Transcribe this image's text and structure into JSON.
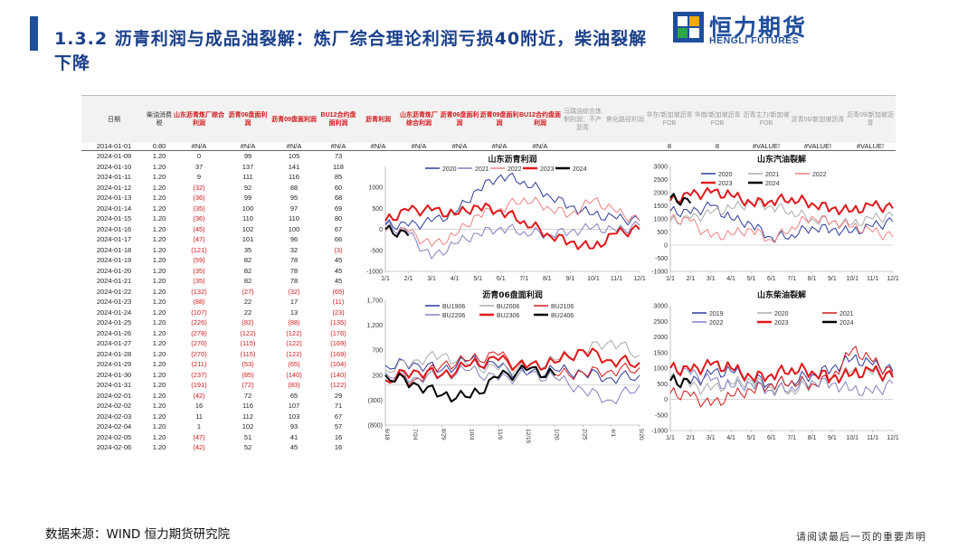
{
  "title": "1.3.2 沥青利润与成品油裂解：炼厂综合理论利润亏损40附近，柴油裂解下降",
  "logo": {
    "cn": "恒力期货",
    "en": "HENGLI FUTURES"
  },
  "table": {
    "headers": [
      {
        "label": "日期",
        "style": "normal"
      },
      {
        "label": "柴油消费税",
        "style": "normal"
      },
      {
        "label": "山东沥青炼厂综合利润",
        "style": "red"
      },
      {
        "label": "沥青06盘面利润",
        "style": "red"
      },
      {
        "label": "沥青09盘面利润",
        "style": "red"
      },
      {
        "label": "BU12合约盘面利润",
        "style": "red"
      },
      {
        "label": "沥青利润",
        "style": "red"
      },
      {
        "label": "山东沥青炼厂综合利润",
        "style": "red"
      },
      {
        "label": "沥青06盘面利润",
        "style": "red"
      },
      {
        "label": "沥青09盘面利润",
        "style": "red"
      },
      {
        "label": "BU12合约盘面利润",
        "style": "red"
      },
      {
        "label": "马瑞油综合炼制利润：不产沥青",
        "style": "gray"
      },
      {
        "label": "焦化路径利润",
        "style": "gray"
      },
      {
        "label": "华东/新加坡沥青FOB",
        "style": "gray"
      },
      {
        "label": "华南/新加坡沥青FOB",
        "style": "gray"
      },
      {
        "label": "沥青主力/新加坡FOB",
        "style": "gray"
      },
      {
        "label": "沥青06/新加坡沥青",
        "style": "gray"
      },
      {
        "label": "沥青09/新加坡沥青",
        "style": "gray"
      }
    ],
    "first_row": [
      "2014-01-01",
      "0.80",
      "#N/A",
      "#N/A",
      "#N/A",
      "#N/A",
      "#N/A",
      "#N/A",
      "#N/A",
      "#N/A",
      "#N/A",
      "",
      "",
      "8",
      "8",
      "#VALUE!",
      "#VALUE!",
      "#VALUE!"
    ],
    "rows": [
      [
        "2024-01-09",
        "1.20",
        "0",
        "99",
        "105",
        "73"
      ],
      [
        "2024-01-10",
        "1.20",
        "37",
        "137",
        "141",
        "118"
      ],
      [
        "2024-01-11",
        "1.20",
        "9",
        "111",
        "116",
        "85"
      ],
      [
        "2024-01-12",
        "1.20",
        "(32)",
        "92",
        "88",
        "60"
      ],
      [
        "2024-01-13",
        "1.20",
        "(36)",
        "99",
        "95",
        "68"
      ],
      [
        "2024-01-14",
        "1.20",
        "(35)",
        "100",
        "97",
        "69"
      ],
      [
        "2024-01-15",
        "1.20",
        "(36)",
        "110",
        "110",
        "80"
      ],
      [
        "2024-01-16",
        "1.20",
        "(45)",
        "102",
        "100",
        "67"
      ],
      [
        "2024-01-17",
        "1.20",
        "(47)",
        "101",
        "96",
        "66"
      ],
      [
        "2024-01-18",
        "1.20",
        "(121)",
        "35",
        "32",
        "(3)"
      ],
      [
        "2024-01-19",
        "1.20",
        "(59)",
        "82",
        "78",
        "45"
      ],
      [
        "2024-01-20",
        "1.20",
        "(35)",
        "82",
        "78",
        "45"
      ],
      [
        "2024-01-21",
        "1.20",
        "(35)",
        "82",
        "78",
        "45"
      ],
      [
        "2024-01-22",
        "1.20",
        "(132)",
        "(27)",
        "(32)",
        "(65)"
      ],
      [
        "2024-01-23",
        "1.20",
        "(88)",
        "22",
        "17",
        "(11)"
      ],
      [
        "2024-01-24",
        "1.20",
        "(107)",
        "22",
        "13",
        "(23)"
      ],
      [
        "2024-01-25",
        "1.20",
        "(226)",
        "(82)",
        "(88)",
        "(135)"
      ],
      [
        "2024-01-26",
        "1.20",
        "(278)",
        "(122)",
        "(122)",
        "(176)"
      ],
      [
        "2024-01-27",
        "1.20",
        "(270)",
        "(115)",
        "(122)",
        "(169)"
      ],
      [
        "2024-01-28",
        "1.20",
        "(270)",
        "(115)",
        "(122)",
        "(169)"
      ],
      [
        "2024-01-29",
        "1.20",
        "(211)",
        "(53)",
        "(65)",
        "(104)"
      ],
      [
        "2024-01-30",
        "1.20",
        "(237)",
        "(85)",
        "(140)",
        "(140)"
      ],
      [
        "2024-01-31",
        "1.20",
        "(191)",
        "(72)",
        "(83)",
        "(122)"
      ],
      [
        "2024-02-01",
        "1.20",
        "(42)",
        "72",
        "65",
        "29"
      ],
      [
        "2024-02-02",
        "1.20",
        "16",
        "116",
        "107",
        "71"
      ],
      [
        "2024-02-03",
        "1.20",
        "11",
        "112",
        "103",
        "67"
      ],
      [
        "2024-02-04",
        "1.20",
        "1",
        "102",
        "93",
        "57"
      ],
      [
        "2024-02-05",
        "1.20",
        "(47)",
        "51",
        "41",
        "16"
      ],
      [
        "2024-02-06",
        "1.20",
        "(42)",
        "52",
        "45",
        "16"
      ]
    ]
  },
  "chart_data": [
    {
      "type": "line",
      "title": "山东沥青利润",
      "x_ticks": [
        "1/1",
        "2/1",
        "3/1",
        "4/1",
        "5/1",
        "6/1",
        "7/1",
        "8/1",
        "9/1",
        "10/1",
        "11/1",
        "12/1"
      ],
      "ylim": [
        -1000,
        1500
      ],
      "y_ticks": [
        "1000",
        "500",
        "0",
        "-500",
        "-1000"
      ],
      "y_tick_values": [
        1000,
        500,
        0,
        -500,
        -1000
      ],
      "series": [
        {
          "name": "2020",
          "color": "#2b3a9c",
          "width": 1,
          "values": [
            120,
            80,
            180,
            380,
            950,
            1300,
            1150,
            850,
            550,
            350,
            250,
            200
          ]
        },
        {
          "name": "2021",
          "color": "#8080c0",
          "width": 1,
          "values": [
            100,
            -100,
            -700,
            -350,
            -100,
            50,
            -50,
            -100,
            -50,
            50,
            -50,
            100
          ]
        },
        {
          "name": "2022",
          "color": "#f08080",
          "width": 1,
          "values": [
            -50,
            -50,
            -400,
            -150,
            350,
            500,
            750,
            550,
            350,
            700,
            400,
            200
          ]
        },
        {
          "name": "2023",
          "color": "#e0191b",
          "width": 2,
          "values": [
            200,
            450,
            450,
            350,
            550,
            450,
            200,
            -100,
            -300,
            -450,
            -100,
            0
          ]
        },
        {
          "name": "2024",
          "color": "#000000",
          "width": 2,
          "values": [
            0,
            -150
          ]
        }
      ]
    },
    {
      "type": "line",
      "title": "山东汽油裂解",
      "x_ticks": [
        "1/1",
        "2/1",
        "3/1",
        "4/1",
        "5/1",
        "6/1",
        "7/1",
        "8/1",
        "9/1",
        "10/1",
        "11/1",
        "12/1"
      ],
      "ylim": [
        -1000,
        3000
      ],
      "y_ticks": [
        "3000",
        "2500",
        "2000",
        "1500",
        "1000",
        "500",
        "0",
        "-500",
        "-1000"
      ],
      "y_tick_values": [
        3000,
        2500,
        2000,
        1500,
        1000,
        500,
        0,
        -500,
        -1000
      ],
      "series": [
        {
          "name": "2020",
          "color": "#2b3a9c",
          "width": 1,
          "values": [
            1300,
            1200,
            1500,
            1000,
            800,
            300,
            400,
            700,
            600,
            500,
            700,
            900
          ]
        },
        {
          "name": "2021",
          "color": "#aaaaaa",
          "width": 1,
          "values": [
            900,
            1000,
            1200,
            1400,
            1600,
            1500,
            1300,
            1000,
            900,
            800,
            1000,
            1100
          ]
        },
        {
          "name": "2022",
          "color": "#f08080",
          "width": 1,
          "values": [
            1000,
            900,
            300,
            400,
            600,
            200,
            700,
            1100,
            900,
            700,
            500,
            300
          ]
        },
        {
          "name": "2023",
          "color": "#e0191b",
          "width": 2,
          "values": [
            1700,
            1900,
            2000,
            1900,
            1600,
            1700,
            1800,
            1600,
            1400,
            1300,
            1500,
            1400
          ]
        },
        {
          "name": "2024",
          "color": "#000000",
          "width": 2,
          "values": [
            1800,
            1600
          ]
        }
      ]
    },
    {
      "type": "line",
      "title": "沥青06盘面利润",
      "x_ticks": [
        "6/18",
        "7/24",
        "8/29",
        "10/4",
        "11/9",
        "12/15",
        "1/20",
        "2/25",
        "4/1",
        "5/20"
      ],
      "ylim": [
        -800,
        1700
      ],
      "y_ticks": [
        "1,700",
        "1,200",
        "700",
        "200",
        "(300)",
        "(800)"
      ],
      "y_tick_values": [
        1700,
        1200,
        700,
        200,
        -300,
        -800
      ],
      "series": [
        {
          "name": "BU1906",
          "color": "#2b3a9c",
          "width": 1,
          "values": [
            400,
            450,
            300,
            500,
            350,
            200,
            300,
            250,
            150,
            200
          ]
        },
        {
          "name": "BU2006",
          "color": "#aaaaaa",
          "width": 1,
          "values": [
            300,
            500,
            600,
            400,
            300,
            350,
            500,
            700,
            900,
            600
          ]
        },
        {
          "name": "BU2106",
          "color": "#d2191b",
          "width": 1,
          "values": [
            200,
            100,
            400,
            500,
            600,
            300,
            200,
            250,
            300,
            350
          ]
        },
        {
          "name": "BU2206",
          "color": "#8080c0",
          "width": 1,
          "values": [
            250,
            150,
            200,
            300,
            100,
            200,
            150,
            -100,
            -300,
            0
          ]
        },
        {
          "name": "BU2306",
          "color": "#e0191b",
          "width": 2,
          "values": [
            100,
            300,
            200,
            400,
            500,
            350,
            450,
            700,
            500,
            450
          ]
        },
        {
          "name": "BU2406",
          "color": "#000000",
          "width": 2,
          "values": [
            200,
            50,
            -200,
            -250,
            150,
            300,
            200
          ]
        }
      ]
    },
    {
      "type": "line",
      "title": "山东柴油裂解",
      "x_ticks": [
        "1/1",
        "2/1",
        "3/1",
        "4/1",
        "5/1",
        "6/1",
        "7/1",
        "8/1",
        "9/1",
        "10/1",
        "11/1",
        "12/1"
      ],
      "ylim": [
        -1000,
        3000
      ],
      "y_ticks": [
        "3000",
        "2500",
        "2000",
        "1500",
        "1000",
        "500",
        "0",
        "-500",
        "-1000"
      ],
      "y_tick_values": [
        3000,
        2500,
        2000,
        1500,
        1000,
        500,
        0,
        -500,
        -1000
      ],
      "series": [
        {
          "name": "2019",
          "color": "#2b3a9c",
          "width": 1,
          "values": [
            600,
            500,
            800,
            900,
            700,
            500,
            600,
            800,
            1000,
            1300,
            1100,
            900
          ]
        },
        {
          "name": "2020",
          "color": "#aaaaaa",
          "width": 1,
          "values": [
            700,
            400,
            300,
            500,
            600,
            400,
            300,
            500,
            700,
            900,
            800,
            700
          ]
        },
        {
          "name": "2021",
          "color": "#d2191b",
          "width": 1,
          "values": [
            200,
            100,
            -200,
            100,
            300,
            500,
            600,
            500,
            700,
            1600,
            1200,
            800
          ]
        },
        {
          "name": "2022",
          "color": "#8080c0",
          "width": 1,
          "values": [
            1000,
            800,
            600,
            400,
            500,
            300,
            400,
            600,
            500,
            300,
            200,
            500
          ]
        },
        {
          "name": "2023",
          "color": "#e0191b",
          "width": 2,
          "values": [
            1000,
            900,
            1100,
            1000,
            700,
            800,
            1000,
            900,
            700,
            800,
            900,
            700
          ]
        },
        {
          "name": "2024",
          "color": "#000000",
          "width": 2,
          "values": [
            600,
            500
          ]
        }
      ]
    }
  ],
  "source": "数据来源：WIND 恒力期货研究院",
  "notice": "请阅读最后一页的重要声明"
}
